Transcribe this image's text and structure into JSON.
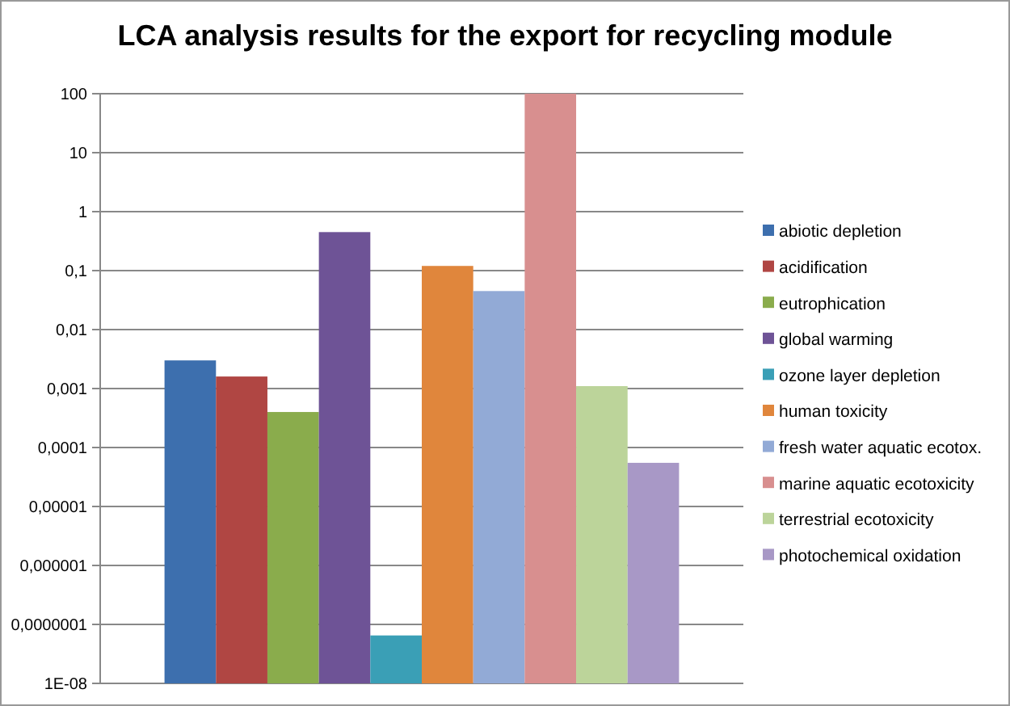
{
  "chart_data": {
    "type": "bar",
    "title": "LCA analysis results for the export for recycling module",
    "categories": [
      null
    ],
    "log": "y",
    "ylim": [
      1e-08,
      100
    ],
    "yticks": [
      {
        "value": 1e-08,
        "label": "1E-08"
      },
      {
        "value": 1e-07,
        "label": "0,0000001"
      },
      {
        "value": 1e-06,
        "label": "0,000001"
      },
      {
        "value": 1e-05,
        "label": "0,00001"
      },
      {
        "value": 0.0001,
        "label": "0,0001"
      },
      {
        "value": 0.001,
        "label": "0,001"
      },
      {
        "value": 0.01,
        "label": "0,01"
      },
      {
        "value": 0.1,
        "label": "0,1"
      },
      1,
      10,
      100
    ],
    "grid": "y",
    "legend": "right",
    "series": [
      {
        "name": "abiotic depletion",
        "color": "#3d6fae",
        "values": [
          0.003
        ]
      },
      {
        "name": "acidification",
        "color": "#b04643",
        "values": [
          0.0016
        ]
      },
      {
        "name": "eutrophication",
        "color": "#8aac4c",
        "values": [
          0.0004
        ]
      },
      {
        "name": "global warming",
        "color": "#6e5396",
        "values": [
          0.45
        ]
      },
      {
        "name": "ozone layer depletion",
        "color": "#3a9fb6",
        "values": [
          6.5e-08
        ]
      },
      {
        "name": "human toxicity",
        "color": "#e0863c",
        "values": [
          0.12
        ]
      },
      {
        "name": "fresh water aquatic ecotox.",
        "color": "#92aad6",
        "values": [
          0.045
        ]
      },
      {
        "name": "marine aquatic ecotoxicity",
        "color": "#d88f8f",
        "values": [
          100
        ]
      },
      {
        "name": "terrestrial ecotoxicity",
        "color": "#bcd49a",
        "values": [
          0.0011
        ]
      },
      {
        "name": "photochemical oxidation",
        "color": "#a898c6",
        "values": [
          5.5e-05
        ]
      }
    ]
  }
}
